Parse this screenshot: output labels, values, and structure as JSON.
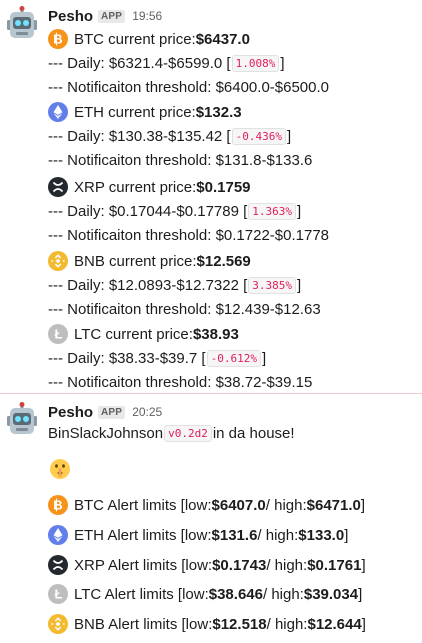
{
  "colors": {
    "btc": "#f7931a",
    "eth": "#627eea",
    "xrp": "#23292f",
    "bnb": "#f3ba2f",
    "ltc": "#bebebe",
    "code_text": "#e01e5a"
  },
  "message1": {
    "sender": "Pesho",
    "badge": "APP",
    "time": "19:56",
    "coins": [
      {
        "icon": "btc-icon",
        "current_label": "BTC current price: ",
        "current": "$6437.0",
        "daily_label": "--- Daily: $6321.4-$6599.0 [",
        "daily_pct": "1.008%",
        "daily_end": "]",
        "threshold": "--- Notificaiton threshold: $6400.0-$6500.0"
      },
      {
        "icon": "eth-icon",
        "current_label": "ETH current price: ",
        "current": "$132.3",
        "daily_label": "--- Daily: $130.38-$135.42 [",
        "daily_pct": "-0.436%",
        "daily_end": "]",
        "threshold": "--- Notificaiton threshold: $131.8-$133.6"
      },
      {
        "icon": "xrp-icon",
        "current_label": "XRP current price: ",
        "current": "$0.1759",
        "daily_label": "--- Daily: $0.17044-$0.17789 [",
        "daily_pct": "1.363%",
        "daily_end": "]",
        "threshold": "--- Notificaiton threshold: $0.1722-$0.1778"
      },
      {
        "icon": "bnb-icon",
        "current_label": "BNB current price: ",
        "current": "$12.569",
        "daily_label": "--- Daily: $12.0893-$12.7322 [",
        "daily_pct": "3.385%",
        "daily_end": "]",
        "threshold": "--- Notificaiton threshold: $12.439-$12.63"
      },
      {
        "icon": "ltc-icon",
        "current_label": "LTC current price: ",
        "current": "$38.93",
        "daily_label": "--- Daily: $38.33-$39.7 [",
        "daily_pct": "-0.612%",
        "daily_end": "]",
        "threshold": "--- Notificaiton threshold: $38.72-$39.15"
      }
    ]
  },
  "message2": {
    "sender": "Pesho",
    "badge": "APP",
    "time": "20:25",
    "intro_before": "BinSlackJohnson ",
    "version": "v0.2d2",
    "intro_after": " in da house!",
    "alerts": [
      {
        "icon": "btc-icon",
        "prefix": "BTC Alert limits [low: ",
        "low": "$6407.0",
        "mid": " / high: ",
        "high": "$6471.0",
        "end": "]"
      },
      {
        "icon": "eth-icon",
        "prefix": "ETH Alert limits [low: ",
        "low": "$131.6",
        "mid": " / high: ",
        "high": "$133.0",
        "end": "]"
      },
      {
        "icon": "xrp-icon",
        "prefix": "XRP Alert limits [low: ",
        "low": "$0.1743",
        "mid": " / high: ",
        "high": "$0.1761",
        "end": "]"
      },
      {
        "icon": "ltc-icon",
        "prefix": "LTC Alert limits [low: ",
        "low": "$38.646",
        "mid": " / high: ",
        "high": "$39.034",
        "end": "]"
      },
      {
        "icon": "bnb-icon",
        "prefix": "BNB Alert limits [low: ",
        "low": "$12.518",
        "mid": " / high: ",
        "high": "$12.644",
        "end": "]"
      }
    ]
  }
}
